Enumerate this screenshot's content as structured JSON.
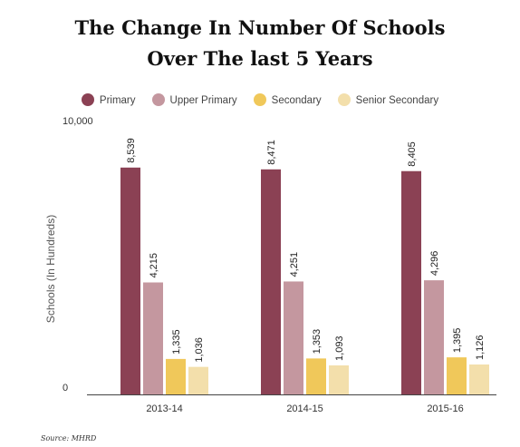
{
  "chart_data": {
    "type": "bar",
    "title_lines": [
      "The Change In Number Of Schools",
      "Over The last 5 Years"
    ],
    "ylabel": "Schools (In Hundreds)",
    "xlabel": "",
    "ylim": [
      0,
      10000
    ],
    "y_tick_labels": [
      "0",
      "10,000"
    ],
    "categories": [
      "2013-14",
      "2014-15",
      "2015-16"
    ],
    "series": [
      {
        "name": "Primary",
        "color": "#8b4154",
        "values": [
          8539,
          8471,
          8405
        ],
        "labels": [
          "8,539",
          "8,471",
          "8,405"
        ]
      },
      {
        "name": "Upper Primary",
        "color": "#c4979f",
        "values": [
          4215,
          4251,
          4296
        ],
        "labels": [
          "4,215",
          "4,251",
          "4,296"
        ]
      },
      {
        "name": "Secondary",
        "color": "#f0c85a",
        "values": [
          1335,
          1353,
          1395
        ],
        "labels": [
          "1,335",
          "1,353",
          "1,395"
        ]
      },
      {
        "name": "Senior Secondary",
        "color": "#f3dfab",
        "values": [
          1036,
          1093,
          1126
        ],
        "labels": [
          "1,036",
          "1,093",
          "1,126"
        ]
      }
    ],
    "legend_position": "top",
    "grid": false
  },
  "source": "Source: MHRD"
}
